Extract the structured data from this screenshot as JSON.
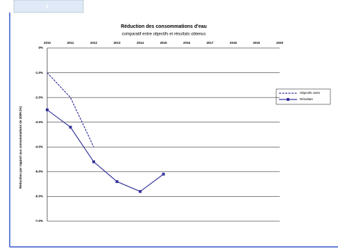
{
  "cell": "8",
  "chart_data": {
    "type": "line",
    "title": "Réduction des consommations d'eau",
    "subtitle": "comparatif entre objectifs et résultats obtenus",
    "y_label": "Réduction par rapport aux consommations de 2009 (%)",
    "categories": [
      "2010",
      "2011",
      "2012",
      "2013",
      "2014",
      "2015",
      "2016",
      "2017",
      "2018",
      "2019",
      "2020"
    ],
    "series": [
      {
        "name": "Objectifs visés",
        "color": "#333399",
        "line_style": "dashed",
        "marker": "none",
        "values": [
          -1.0,
          -2.0,
          -4.0,
          null,
          null,
          null,
          null,
          null,
          null,
          null,
          null
        ]
      },
      {
        "name": "Résultats",
        "color": "#333399",
        "line_style": "solid",
        "marker": "square",
        "values": [
          -2.5,
          -3.2,
          -4.6,
          -5.4,
          -5.8,
          -5.1,
          null,
          null,
          null,
          null,
          null
        ]
      }
    ],
    "ylim": [
      0,
      -7
    ],
    "yticks": [
      {
        "value": 0,
        "label": "0%"
      },
      {
        "value": -1,
        "label": "-1.0%"
      },
      {
        "value": -2,
        "label": "-2.0%"
      },
      {
        "value": -3,
        "label": "-3.0%"
      },
      {
        "value": -4,
        "label": "-4.0%"
      },
      {
        "value": -5,
        "label": "-5.0%"
      },
      {
        "value": -6,
        "label": "-6.0%"
      },
      {
        "value": -7,
        "label": "-7.0%"
      }
    ],
    "grid": true,
    "legend": "right"
  }
}
